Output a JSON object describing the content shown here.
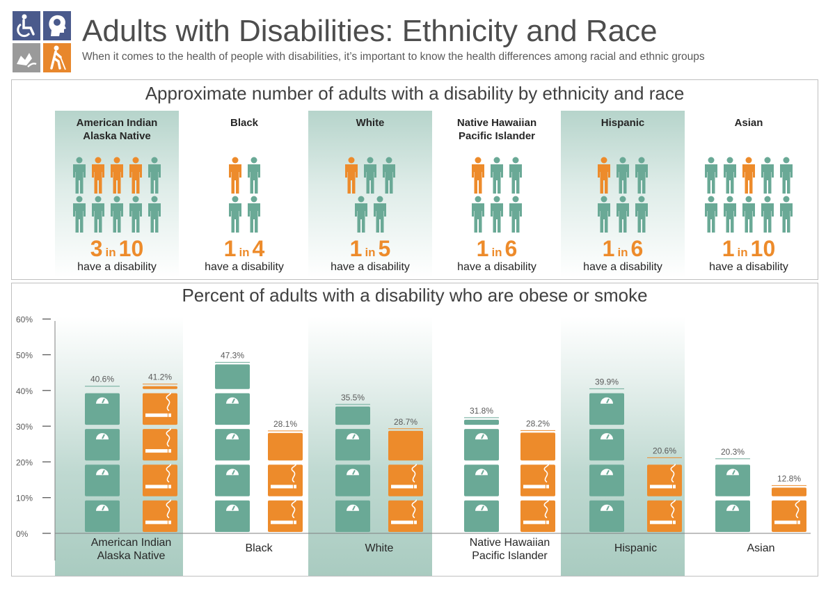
{
  "header": {
    "title": "Adults with Disabilities: Ethnicity and Race",
    "subtitle": "When it comes to the health of people with disabilities, it’s important to know the health differences among racial and ethnic groups",
    "logo_icons": [
      "wheelchair-icon",
      "head-profile-icon",
      "sign-language-icon",
      "walking-cane-icon"
    ]
  },
  "colors": {
    "teal": "#6aa996",
    "orange": "#ed8b2b",
    "teal_shade": "#b6d4cb",
    "logo_blue": "#4a5a8c",
    "logo_gray": "#9a9a9a",
    "logo_orange": "#e8872c"
  },
  "panel1": {
    "title": "Approximate number of adults with a disability by ethnicity and race",
    "groups": [
      {
        "name_lines": [
          "American Indian",
          "Alaska Native"
        ],
        "numerator": "3",
        "in_word": "in",
        "denominator": "10",
        "label": "have a disability",
        "highlight": 3,
        "total": 10
      },
      {
        "name_lines": [
          "Black"
        ],
        "numerator": "1",
        "in_word": "in",
        "denominator": "4",
        "label": "have a disability",
        "highlight": 1,
        "total": 4
      },
      {
        "name_lines": [
          "White"
        ],
        "numerator": "1",
        "in_word": "in",
        "denominator": "5",
        "label": "have a disability",
        "highlight": 1,
        "total": 5
      },
      {
        "name_lines": [
          "Native Hawaiian",
          "Pacific Islander"
        ],
        "numerator": "1",
        "in_word": "in",
        "denominator": "6",
        "label": "have a disability",
        "highlight": 1,
        "total": 6
      },
      {
        "name_lines": [
          "Hispanic"
        ],
        "numerator": "1",
        "in_word": "in",
        "denominator": "6",
        "label": "have a disability",
        "highlight": 1,
        "total": 6
      },
      {
        "name_lines": [
          "Asian"
        ],
        "numerator": "1",
        "in_word": "in",
        "denominator": "10",
        "label": "have a disability",
        "highlight": 1,
        "total": 10
      }
    ]
  },
  "chart_data": {
    "type": "bar",
    "title": "Percent of adults with a disability who are obese or smoke",
    "categories": [
      "American Indian Alaska Native",
      "Black",
      "White",
      "Native Hawaiian Pacific Islander",
      "Hispanic",
      "Asian"
    ],
    "category_lines": [
      [
        "American Indian",
        "Alaska Native"
      ],
      [
        "Black"
      ],
      [
        "White"
      ],
      [
        "Native Hawaiian",
        "Pacific Islander"
      ],
      [
        "Hispanic"
      ],
      [
        "Asian"
      ]
    ],
    "series": [
      {
        "icon": "scale-icon",
        "color": "#6aa996",
        "values": [
          40.6,
          47.3,
          35.5,
          31.8,
          39.9,
          20.3
        ],
        "labels": [
          "40.6%",
          "47.3%",
          "35.5%",
          "31.8%",
          "39.9%",
          "20.3%"
        ]
      },
      {
        "icon": "cigarette-icon",
        "color": "#ed8b2b",
        "values": [
          41.2,
          28.1,
          28.7,
          28.2,
          20.6,
          12.8
        ],
        "labels": [
          "41.2%",
          "28.1%",
          "28.7%",
          "28.2%",
          "20.6%",
          "12.8%"
        ]
      }
    ],
    "ylim": [
      0,
      60
    ],
    "yticks": [
      0,
      10,
      20,
      30,
      40,
      50,
      60
    ],
    "ytick_labels": [
      "0%",
      "10%",
      "20%",
      "30%",
      "40%",
      "50%",
      "60%"
    ],
    "shaded_categories": [
      0,
      2,
      4
    ]
  }
}
